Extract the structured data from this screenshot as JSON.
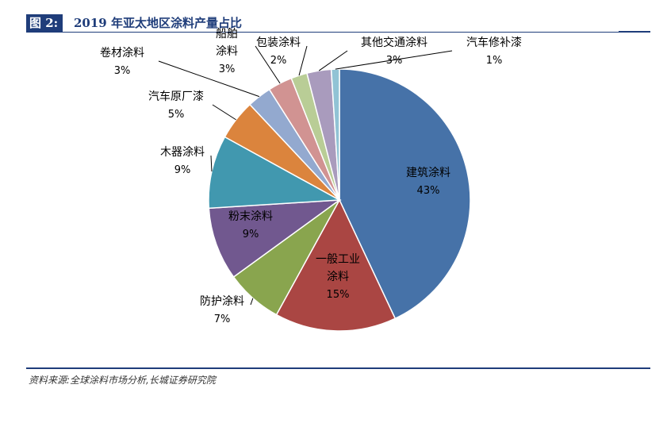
{
  "header": {
    "figure_tag": "图 2:",
    "title": "2019 年亚太地区涂料产量占比"
  },
  "footer": {
    "source": "资料来源:全球涂料市场分析,长城证券研究院"
  },
  "chart_data": {
    "type": "pie",
    "title": "2019 年亚太地区涂料产量占比",
    "slices": [
      {
        "name": "建筑涂料",
        "value": 43,
        "label": "43%",
        "color": "#4672A8"
      },
      {
        "name": "一般工业涂料",
        "value": 15,
        "label": "15%",
        "color": "#AA4643"
      },
      {
        "name": "防护涂料",
        "value": 7,
        "label": "7%",
        "color": "#89A54E"
      },
      {
        "name": "粉末涂料",
        "value": 9,
        "label": "9%",
        "color": "#71588F"
      },
      {
        "name": "木器涂料",
        "value": 9,
        "label": "9%",
        "color": "#4198AF"
      },
      {
        "name": "汽车原厂漆",
        "value": 5,
        "label": "5%",
        "color": "#DB843D"
      },
      {
        "name": "卷材涂料",
        "value": 3,
        "label": "3%",
        "color": "#93A9CF"
      },
      {
        "name": "船舶涂料",
        "value": 3,
        "label": "3%",
        "color": "#D19392"
      },
      {
        "name": "包装涂料",
        "value": 2,
        "label": "2%",
        "color": "#B9CD96"
      },
      {
        "name": "其他交通涂料",
        "value": 3,
        "label": "3%",
        "color": "#A99BBD"
      },
      {
        "name": "汽车修补漆",
        "value": 1,
        "label": "1%",
        "color": "#91C3D5"
      }
    ],
    "label_text": {
      "建筑涂料": [
        "建筑涂料",
        "43%"
      ],
      "一般工业涂料": [
        "一般工业",
        "涂料",
        "15%"
      ],
      "防护涂料": [
        "防护涂料",
        "7%"
      ],
      "粉末涂料": [
        "粉末涂料",
        "9%"
      ],
      "木器涂料": [
        "木器涂料",
        "9%"
      ],
      "汽车原厂漆": [
        "汽车原厂漆",
        "5%"
      ],
      "卷材涂料": [
        "卷材涂料",
        "3%"
      ],
      "船舶涂料": [
        "船舶",
        "涂料",
        "3%"
      ],
      "包装涂料": [
        "包装涂料",
        "2%"
      ],
      "其他交通涂料": [
        "其他交通涂料",
        "3%"
      ],
      "汽车修补漆": [
        "汽车修补漆",
        "1%"
      ]
    }
  }
}
